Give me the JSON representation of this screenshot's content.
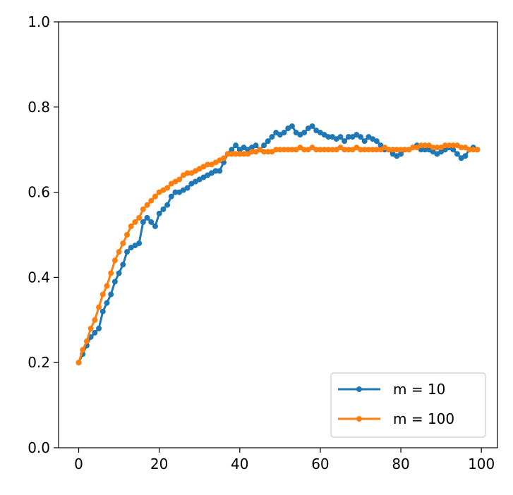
{
  "chart_data": {
    "type": "line",
    "title": "",
    "xlabel": "",
    "ylabel": "",
    "xlim": [
      -5,
      104
    ],
    "ylim": [
      0.0,
      1.0
    ],
    "x_ticks": [
      0,
      20,
      40,
      60,
      80,
      100
    ],
    "x_tick_labels": [
      "0",
      "20",
      "40",
      "60",
      "80",
      "100"
    ],
    "y_ticks": [
      0.0,
      0.2,
      0.4,
      0.6,
      0.8,
      1.0
    ],
    "y_tick_labels": [
      "0.0",
      "0.2",
      "0.4",
      "0.6",
      "0.8",
      "1.0"
    ],
    "grid": false,
    "legend_position": "lower-right",
    "markers": true,
    "series": [
      {
        "name": "m = 10",
        "color": "#1f77b4",
        "x": [
          0,
          1,
          2,
          3,
          4,
          5,
          6,
          7,
          8,
          9,
          10,
          11,
          12,
          13,
          14,
          15,
          16,
          17,
          18,
          19,
          20,
          21,
          22,
          23,
          24,
          25,
          26,
          27,
          28,
          29,
          30,
          31,
          32,
          33,
          34,
          35,
          36,
          37,
          38,
          39,
          40,
          41,
          42,
          43,
          44,
          45,
          46,
          47,
          48,
          49,
          50,
          51,
          52,
          53,
          54,
          55,
          56,
          57,
          58,
          59,
          60,
          61,
          62,
          63,
          64,
          65,
          66,
          67,
          68,
          69,
          70,
          71,
          72,
          73,
          74,
          75,
          76,
          77,
          78,
          79,
          80,
          81,
          82,
          83,
          84,
          85,
          86,
          87,
          88,
          89,
          90,
          91,
          92,
          93,
          94,
          95,
          96,
          97,
          98,
          99
        ],
        "y": [
          0.2,
          0.22,
          0.24,
          0.26,
          0.27,
          0.28,
          0.32,
          0.34,
          0.36,
          0.39,
          0.41,
          0.43,
          0.46,
          0.47,
          0.475,
          0.48,
          0.53,
          0.54,
          0.53,
          0.52,
          0.55,
          0.56,
          0.57,
          0.59,
          0.6,
          0.6,
          0.605,
          0.61,
          0.62,
          0.625,
          0.63,
          0.635,
          0.64,
          0.645,
          0.65,
          0.65,
          0.67,
          0.69,
          0.7,
          0.71,
          0.7,
          0.705,
          0.7,
          0.705,
          0.71,
          0.7,
          0.71,
          0.72,
          0.73,
          0.74,
          0.735,
          0.74,
          0.75,
          0.755,
          0.74,
          0.735,
          0.74,
          0.75,
          0.755,
          0.745,
          0.74,
          0.735,
          0.73,
          0.73,
          0.725,
          0.73,
          0.72,
          0.73,
          0.73,
          0.735,
          0.73,
          0.72,
          0.73,
          0.725,
          0.72,
          0.71,
          0.7,
          0.7,
          0.69,
          0.685,
          0.69,
          0.7,
          0.7,
          0.705,
          0.71,
          0.7,
          0.7,
          0.7,
          0.695,
          0.69,
          0.695,
          0.7,
          0.705,
          0.7,
          0.69,
          0.68,
          0.685,
          0.7,
          0.705,
          0.7
        ]
      },
      {
        "name": "m = 100",
        "color": "#ff7f0e",
        "x": [
          0,
          1,
          2,
          3,
          4,
          5,
          6,
          7,
          8,
          9,
          10,
          11,
          12,
          13,
          14,
          15,
          16,
          17,
          18,
          19,
          20,
          21,
          22,
          23,
          24,
          25,
          26,
          27,
          28,
          29,
          30,
          31,
          32,
          33,
          34,
          35,
          36,
          37,
          38,
          39,
          40,
          41,
          42,
          43,
          44,
          45,
          46,
          47,
          48,
          49,
          50,
          51,
          52,
          53,
          54,
          55,
          56,
          57,
          58,
          59,
          60,
          61,
          62,
          63,
          64,
          65,
          66,
          67,
          68,
          69,
          70,
          71,
          72,
          73,
          74,
          75,
          76,
          77,
          78,
          79,
          80,
          81,
          82,
          83,
          84,
          85,
          86,
          87,
          88,
          89,
          90,
          91,
          92,
          93,
          94,
          95,
          96,
          97,
          98,
          99
        ],
        "y": [
          0.2,
          0.23,
          0.25,
          0.28,
          0.3,
          0.33,
          0.36,
          0.38,
          0.41,
          0.44,
          0.46,
          0.48,
          0.5,
          0.52,
          0.53,
          0.54,
          0.56,
          0.57,
          0.58,
          0.59,
          0.6,
          0.605,
          0.61,
          0.62,
          0.625,
          0.63,
          0.64,
          0.645,
          0.645,
          0.65,
          0.655,
          0.66,
          0.665,
          0.665,
          0.67,
          0.675,
          0.68,
          0.69,
          0.69,
          0.69,
          0.69,
          0.69,
          0.69,
          0.695,
          0.695,
          0.7,
          0.695,
          0.695,
          0.695,
          0.7,
          0.7,
          0.7,
          0.7,
          0.7,
          0.7,
          0.705,
          0.7,
          0.7,
          0.705,
          0.7,
          0.7,
          0.7,
          0.7,
          0.7,
          0.7,
          0.705,
          0.7,
          0.7,
          0.7,
          0.705,
          0.7,
          0.7,
          0.7,
          0.7,
          0.7,
          0.7,
          0.705,
          0.7,
          0.7,
          0.7,
          0.7,
          0.7,
          0.7,
          0.705,
          0.705,
          0.71,
          0.71,
          0.71,
          0.705,
          0.705,
          0.705,
          0.71,
          0.71,
          0.71,
          0.71,
          0.705,
          0.705,
          0.7,
          0.7,
          0.7
        ]
      }
    ]
  }
}
